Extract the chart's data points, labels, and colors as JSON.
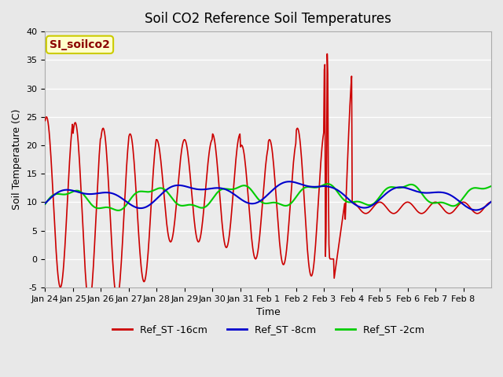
{
  "title": "Soil CO2 Reference Soil Temperatures",
  "xlabel": "Time",
  "ylabel": "Soil Temperature (C)",
  "ylim": [
    -5,
    40
  ],
  "annotation_text": "SI_soilco2",
  "annotation_color": "#8B0000",
  "annotation_bg": "#FFFFCC",
  "annotation_border": "#CCCC00",
  "fig_bg_color": "#E8E8E8",
  "plot_bg": "#EBEBEB",
  "grid_color": "#FFFFFF",
  "series": {
    "Ref_ST -16cm": {
      "color": "#CC0000",
      "linewidth": 1.2
    },
    "Ref_ST -8cm": {
      "color": "#0000CC",
      "linewidth": 1.5
    },
    "Ref_ST -2cm": {
      "color": "#00CC00",
      "linewidth": 1.5
    }
  },
  "xtick_labels": [
    "Jan 24",
    "Jan 25",
    "Jan 26",
    "Jan 27",
    "Jan 28",
    "Jan 29",
    "Jan 30",
    "Jan 31",
    "Feb 1",
    "Feb 2",
    "Feb 3",
    "Feb 4",
    "Feb 5",
    "Feb 6",
    "Feb 7",
    "Feb 8"
  ],
  "ytick_labels": [
    "-5",
    "0",
    "5",
    "10",
    "15",
    "20",
    "25",
    "30",
    "35",
    "40"
  ],
  "ytick_values": [
    -5,
    0,
    5,
    10,
    15,
    20,
    25,
    30,
    35,
    40
  ]
}
